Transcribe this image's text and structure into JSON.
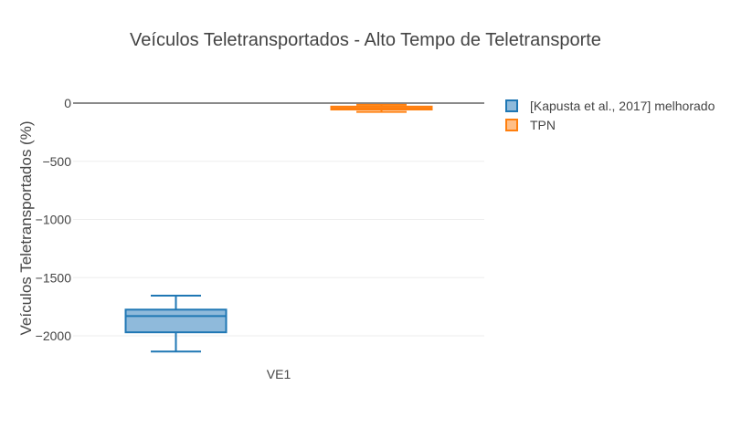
{
  "chart_data": {
    "type": "box",
    "title": "Veículos Teletransportados - Alto Tempo de Teletransporte",
    "ylabel": "Veículos Teletransportados (%)",
    "xlabel": "",
    "categories": [
      "VE1"
    ],
    "ylim": [
      -2280,
      50
    ],
    "yticks": [
      0,
      -500,
      -1000,
      -1500,
      -2000
    ],
    "ytick_labels": [
      "0",
      "−500",
      "−1000",
      "−1500",
      "−2000"
    ],
    "grid": true,
    "legend_position": "top-right",
    "series": [
      {
        "name": "[Kapusta et al., 2017] melhorado",
        "color": "#1f77b4",
        "fill": "#8fbadb",
        "lowerfence": -2135,
        "q1": -1970,
        "median": -1830,
        "q3": -1775,
        "upperfence": -1655
      },
      {
        "name": "TPN",
        "color": "#ff7f0e",
        "fill": "#ffbf87",
        "lowerfence": -75,
        "q1": -55,
        "median": -45,
        "q3": -30,
        "upperfence": -15
      }
    ]
  }
}
